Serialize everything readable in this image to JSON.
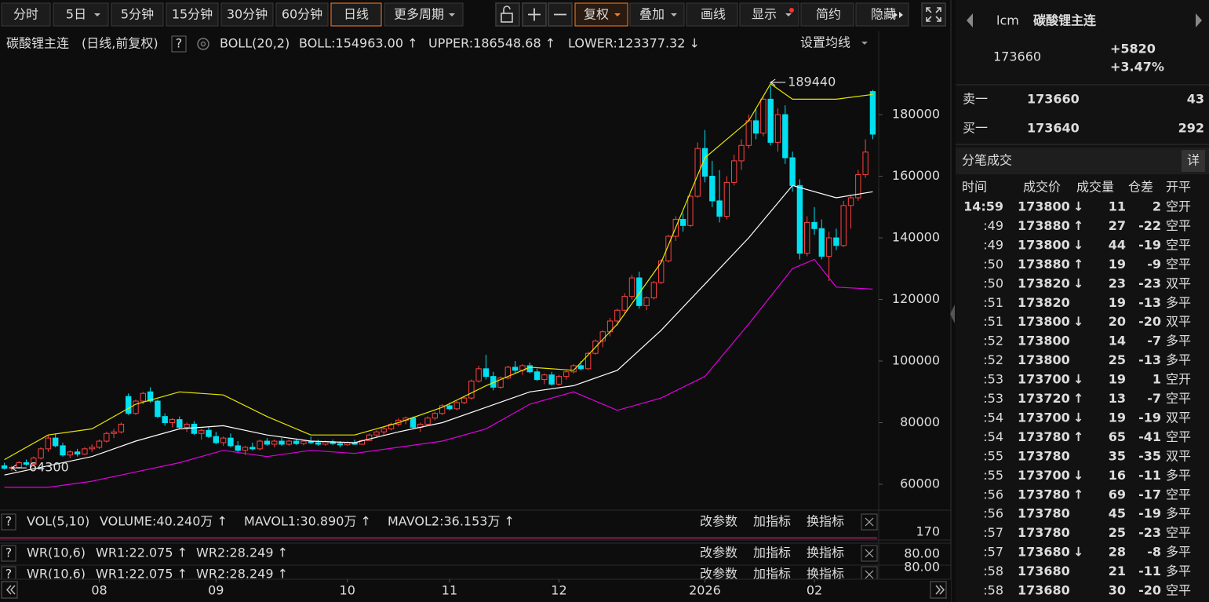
{
  "toolbar": {
    "periods": [
      "分时",
      "5日",
      "5分钟",
      "15分钟",
      "30分钟",
      "60分钟",
      "日线",
      "更多周期"
    ],
    "active_period": 6,
    "tools": [
      "复权",
      "叠加",
      "画线",
      "显示",
      "简约",
      "隐藏"
    ],
    "active_tool": 0
  },
  "help": "?",
  "header": {
    "name": "碳酸锂主连",
    "mode": "(日线,前复权)",
    "indicator": "BOLL(20,2)",
    "boll": "BOLL:154963.00 ↑",
    "upper": "UPPER:186548.68 ↑",
    "lower": "LOWER:123377.32 ↓",
    "settings": "设置均线"
  },
  "chart_data": {
    "type": "candlestick",
    "up_color": "#ff4040",
    "down_color": "#00e0f0",
    "xlim": [
      -0.6,
      119.6
    ],
    "ylim": [
      52100,
      198100
    ],
    "yticks": [
      60000,
      80000,
      100000,
      120000,
      140000,
      160000,
      180000
    ],
    "xticks": [
      {
        "value": 13,
        "label": "08"
      },
      {
        "value": 29,
        "label": "09"
      },
      {
        "value": 47,
        "label": "10"
      },
      {
        "value": 61,
        "label": "11"
      },
      {
        "value": 76,
        "label": "12"
      },
      {
        "value": 96,
        "label": "2026"
      },
      {
        "value": 111,
        "label": "02"
      }
    ],
    "ohlc": [
      [
        66000,
        67000,
        64800,
        65200
      ],
      [
        65200,
        66000,
        64300,
        65500
      ],
      [
        65500,
        67500,
        65000,
        67000
      ],
      [
        67000,
        68000,
        66000,
        66500
      ],
      [
        66500,
        69000,
        66200,
        68500
      ],
      [
        68500,
        72000,
        68000,
        71500
      ],
      [
        71500,
        76000,
        70500,
        75000
      ],
      [
        75000,
        76500,
        72000,
        72500
      ],
      [
        72500,
        73500,
        69000,
        69500
      ],
      [
        69500,
        71000,
        68500,
        70500
      ],
      [
        70500,
        71500,
        69000,
        69800
      ],
      [
        69800,
        72000,
        69500,
        71500
      ],
      [
        71500,
        73000,
        70500,
        72000
      ],
      [
        72000,
        74500,
        71500,
        74000
      ],
      [
        74000,
        77000,
        73500,
        76500
      ],
      [
        76500,
        78000,
        75000,
        77000
      ],
      [
        77000,
        80000,
        76500,
        79500
      ],
      [
        88500,
        89500,
        82500,
        83000
      ],
      [
        83000,
        87500,
        82500,
        87000
      ],
      [
        87000,
        90000,
        86000,
        89500
      ],
      [
        90000,
        91500,
        86500,
        87000
      ],
      [
        87000,
        87500,
        81500,
        82000
      ],
      [
        82000,
        83000,
        79000,
        80000
      ],
      [
        80000,
        81500,
        78500,
        81000
      ],
      [
        81000,
        82000,
        78000,
        78500
      ],
      [
        78500,
        80000,
        77000,
        79500
      ],
      [
        79500,
        80500,
        76000,
        76500
      ],
      [
        76500,
        78000,
        74500,
        77500
      ],
      [
        77500,
        78500,
        75000,
        75500
      ],
      [
        75500,
        77000,
        73000,
        73500
      ],
      [
        73500,
        75500,
        72500,
        75000
      ],
      [
        75000,
        76500,
        72000,
        72500
      ],
      [
        72500,
        74000,
        70500,
        71000
      ],
      [
        71000,
        72500,
        69500,
        72000
      ],
      [
        72000,
        73500,
        71000,
        71500
      ],
      [
        71500,
        74500,
        71000,
        74000
      ],
      [
        74000,
        75000,
        72500,
        73000
      ],
      [
        73000,
        74500,
        72000,
        74000
      ],
      [
        74000,
        75000,
        72500,
        73000
      ],
      [
        73000,
        74500,
        72500,
        74000
      ],
      [
        74000,
        74800,
        72800,
        73200
      ],
      [
        73200,
        74500,
        72600,
        74000
      ],
      [
        74000,
        75500,
        73000,
        73500
      ],
      [
        73500,
        74500,
        72500,
        73000
      ],
      [
        73000,
        74200,
        72500,
        73800
      ],
      [
        73800,
        74500,
        72800,
        73200
      ],
      [
        73200,
        74000,
        72000,
        72800
      ],
      [
        72800,
        74000,
        72500,
        73500
      ],
      [
        73500,
        74500,
        72800,
        73000
      ],
      [
        73000,
        74500,
        72800,
        74200
      ],
      [
        74200,
        76500,
        74000,
        76000
      ],
      [
        76000,
        77500,
        75200,
        77000
      ],
      [
        77000,
        78500,
        76000,
        78000
      ],
      [
        78000,
        80000,
        77500,
        79500
      ],
      [
        79500,
        81500,
        78800,
        80800
      ],
      [
        80800,
        82000,
        79500,
        81500
      ],
      [
        81500,
        82000,
        78000,
        78500
      ],
      [
        78500,
        80000,
        77000,
        79500
      ],
      [
        79500,
        82000,
        79000,
        81500
      ],
      [
        81500,
        83500,
        80800,
        83000
      ],
      [
        83000,
        86000,
        82500,
        85500
      ],
      [
        85500,
        86500,
        84000,
        84500
      ],
      [
        84500,
        87000,
        84000,
        86500
      ],
      [
        86500,
        88500,
        86000,
        88000
      ],
      [
        88000,
        94000,
        87500,
        93500
      ],
      [
        93500,
        98500,
        93000,
        97500
      ],
      [
        97500,
        102000,
        94000,
        95000
      ],
      [
        95000,
        96500,
        90500,
        91500
      ],
      [
        91500,
        95000,
        91000,
        94500
      ],
      [
        94500,
        98500,
        94000,
        98000
      ],
      [
        98000,
        100000,
        96000,
        97000
      ],
      [
        97000,
        99000,
        95500,
        98500
      ],
      [
        98500,
        99500,
        96000,
        96500
      ],
      [
        96500,
        97500,
        93500,
        94000
      ],
      [
        94000,
        96000,
        92500,
        95500
      ],
      [
        95500,
        96500,
        92000,
        92500
      ],
      [
        92500,
        95500,
        92000,
        95000
      ],
      [
        95000,
        97000,
        94000,
        96500
      ],
      [
        96500,
        99000,
        96000,
        98500
      ],
      [
        98500,
        100000,
        97000,
        97500
      ],
      [
        97500,
        103000,
        97000,
        102500
      ],
      [
        102500,
        107000,
        102000,
        106500
      ],
      [
        106500,
        110000,
        104500,
        109500
      ],
      [
        109500,
        114000,
        108000,
        113000
      ],
      [
        113000,
        117000,
        111500,
        116500
      ],
      [
        116500,
        122000,
        115500,
        121000
      ],
      [
        121000,
        128000,
        120000,
        127000
      ],
      [
        127000,
        129000,
        117000,
        118000
      ],
      [
        118000,
        121000,
        116500,
        120500
      ],
      [
        120500,
        126000,
        120000,
        125500
      ],
      [
        125500,
        133000,
        125000,
        132500
      ],
      [
        132500,
        141000,
        132000,
        140500
      ],
      [
        140500,
        147000,
        139000,
        146000
      ],
      [
        146000,
        148000,
        142000,
        144000
      ],
      [
        144000,
        154000,
        143500,
        153500
      ],
      [
        153500,
        171000,
        153000,
        169000
      ],
      [
        169000,
        175000,
        158000,
        160000
      ],
      [
        160000,
        165000,
        150000,
        152000
      ],
      [
        152000,
        162000,
        145000,
        147000
      ],
      [
        147000,
        160000,
        146000,
        158000
      ],
      [
        158000,
        167000,
        157000,
        165000
      ],
      [
        165000,
        172000,
        162000,
        170000
      ],
      [
        170000,
        180000,
        169000,
        178000
      ],
      [
        178000,
        182000,
        172000,
        174000
      ],
      [
        174000,
        186000,
        173000,
        185000
      ],
      [
        185000,
        189440,
        170000,
        171000
      ],
      [
        171000,
        182000,
        168000,
        180000
      ],
      [
        180000,
        183000,
        164000,
        166000
      ],
      [
        166000,
        168000,
        155000,
        157000
      ],
      [
        157000,
        159000,
        133000,
        135000
      ],
      [
        135000,
        147000,
        134000,
        145000
      ],
      [
        145000,
        150000,
        141000,
        143000
      ],
      [
        143000,
        146000,
        133000,
        134000
      ],
      [
        134000,
        142000,
        126000,
        140000
      ],
      [
        140000,
        143000,
        136000,
        137500
      ],
      [
        137500,
        152000,
        137000,
        150500
      ],
      [
        150500,
        154000,
        143000,
        153000
      ],
      [
        153000,
        162000,
        152000,
        160500
      ],
      [
        160500,
        172000,
        159500,
        167840
      ],
      [
        187500,
        188000,
        172000,
        173660
      ]
    ],
    "series": [
      {
        "color": "#ffffff",
        "x": [
          0,
          6,
          12,
          18,
          24,
          30,
          36,
          42,
          48,
          54,
          60,
          66,
          72,
          78,
          84,
          90,
          96,
          102,
          108,
          114,
          119
        ],
        "values": [
          63000,
          66000,
          69000,
          74000,
          78000,
          79000,
          76000,
          74000,
          73500,
          77000,
          80000,
          85000,
          90000,
          92000,
          97000,
          110000,
          125000,
          140000,
          157000,
          153000,
          154963
        ]
      },
      {
        "color": "#e8e800",
        "x": [
          0,
          6,
          12,
          18,
          24,
          30,
          36,
          42,
          48,
          54,
          60,
          66,
          72,
          78,
          84,
          90,
          96,
          102,
          105,
          108,
          114,
          119
        ],
        "values": [
          68000,
          76000,
          78000,
          86000,
          90000,
          89000,
          82000,
          76000,
          76000,
          80000,
          85000,
          92000,
          98000,
          97000,
          112000,
          132000,
          166000,
          178000,
          190000,
          185000,
          185000,
          186548.68
        ]
      },
      {
        "color": "#e000e0",
        "x": [
          0,
          6,
          12,
          18,
          24,
          30,
          36,
          42,
          48,
          54,
          60,
          66,
          72,
          78,
          84,
          90,
          96,
          102,
          108,
          111,
          114,
          119
        ],
        "values": [
          59000,
          59000,
          61000,
          64000,
          67000,
          71000,
          69000,
          71000,
          70000,
          72000,
          74000,
          78000,
          86000,
          90000,
          84000,
          88000,
          95000,
          112000,
          130000,
          133000,
          124000,
          123377.32
        ]
      }
    ],
    "annotations": [
      {
        "x": 105,
        "value": 189440
      },
      {
        "x": 1,
        "value": 64300
      }
    ]
  },
  "panel_buttons": [
    "改参数",
    "加指标",
    "换指标"
  ],
  "volume_panel": {
    "name": "VOL(5,10)",
    "items": [
      "VOLUME:40.240万 ↑",
      "MAVOL1:30.890万 ↑",
      "MAVOL2:36.153万 ↑"
    ],
    "item_colors": [
      "#ffffff",
      "#e8e800",
      "#e000e0"
    ],
    "axis_label": "170"
  },
  "wr_panel": {
    "name": "WR(10,6)",
    "items": [
      "WR1:22.075 ↑",
      "WR2:28.249 ↑"
    ],
    "item_colors": [
      "#ffffff",
      "#e8e800"
    ],
    "axis_labels": [
      "80.00",
      "80.00"
    ]
  },
  "quote": {
    "symbol": "lcm",
    "name": "碳酸锂主连",
    "price": 173660,
    "change": "+5820",
    "change_pct": "+3.47%",
    "ask_label": "卖一",
    "ask": 173660,
    "ask_volume": 43,
    "bid_label": "买一",
    "bid": 173640,
    "bid_volume": 292
  },
  "trades": {
    "title": "分笔成交",
    "detail": "详",
    "columns": [
      "时间",
      "成交价",
      "成交量",
      "仓差",
      "开平"
    ],
    "arrow_colors": {
      "↑": "#ff4040",
      "↓": "#22dd44"
    },
    "type_colors": {
      "空开": "#22dd44",
      "空平": "#ff4040",
      "双平": "#22dd44",
      "多平": "#22dd44"
    },
    "rows": [
      {
        "time": "14:59",
        "price": 173800,
        "arrow": "↓",
        "volume": 11,
        "diff": 2,
        "type": "空开"
      },
      {
        "time": ":49",
        "price": 173880,
        "arrow": "↑",
        "volume": 27,
        "diff": -22,
        "type": "空平"
      },
      {
        "time": ":49",
        "price": 173800,
        "arrow": "↓",
        "volume": 44,
        "diff": -19,
        "type": "空平"
      },
      {
        "time": ":50",
        "price": 173880,
        "arrow": "↑",
        "volume": 19,
        "diff": -9,
        "type": "空平"
      },
      {
        "time": ":50",
        "price": 173820,
        "arrow": "↓",
        "volume": 23,
        "diff": -23,
        "type": "双平"
      },
      {
        "time": ":51",
        "price": 173820,
        "volume": 19,
        "diff": -13,
        "type": "多平"
      },
      {
        "time": ":51",
        "price": 173800,
        "arrow": "↓",
        "volume": 20,
        "diff": -20,
        "type": "双平"
      },
      {
        "time": ":52",
        "price": 173800,
        "volume": 14,
        "diff": -7,
        "type": "多平"
      },
      {
        "time": ":52",
        "price": 173800,
        "volume": 25,
        "diff": -13,
        "type": "多平"
      },
      {
        "time": ":53",
        "price": 173700,
        "arrow": "↓",
        "volume": 19,
        "diff": 1,
        "type": "空开"
      },
      {
        "time": ":53",
        "price": 173720,
        "arrow": "↑",
        "volume": 13,
        "diff": -7,
        "type": "空平"
      },
      {
        "time": ":54",
        "price": 173700,
        "arrow": "↓",
        "volume": 19,
        "diff": -19,
        "type": "双平"
      },
      {
        "time": ":54",
        "price": 173780,
        "arrow": "↑",
        "volume": 65,
        "diff": -41,
        "type": "空平"
      },
      {
        "time": ":55",
        "price": 173780,
        "volume": 35,
        "diff": -35,
        "type": "双平"
      },
      {
        "time": ":55",
        "price": 173700,
        "arrow": "↓",
        "volume": 16,
        "diff": -11,
        "type": "多平"
      },
      {
        "time": ":56",
        "price": 173780,
        "arrow": "↑",
        "volume": 69,
        "diff": -17,
        "type": "空平"
      },
      {
        "time": ":56",
        "price": 173780,
        "volume": 45,
        "diff": -19,
        "type": "多平"
      },
      {
        "time": ":57",
        "price": 173780,
        "volume": 25,
        "diff": -23,
        "type": "空平"
      },
      {
        "time": ":57",
        "price": 173680,
        "arrow": "↓",
        "volume": 28,
        "diff": -8,
        "type": "多平"
      },
      {
        "time": ":58",
        "price": 173680,
        "volume": 21,
        "diff": -11,
        "type": "多平"
      },
      {
        "time": ":58",
        "price": 173680,
        "volume": 30,
        "diff": -20,
        "type": "空平"
      }
    ]
  }
}
